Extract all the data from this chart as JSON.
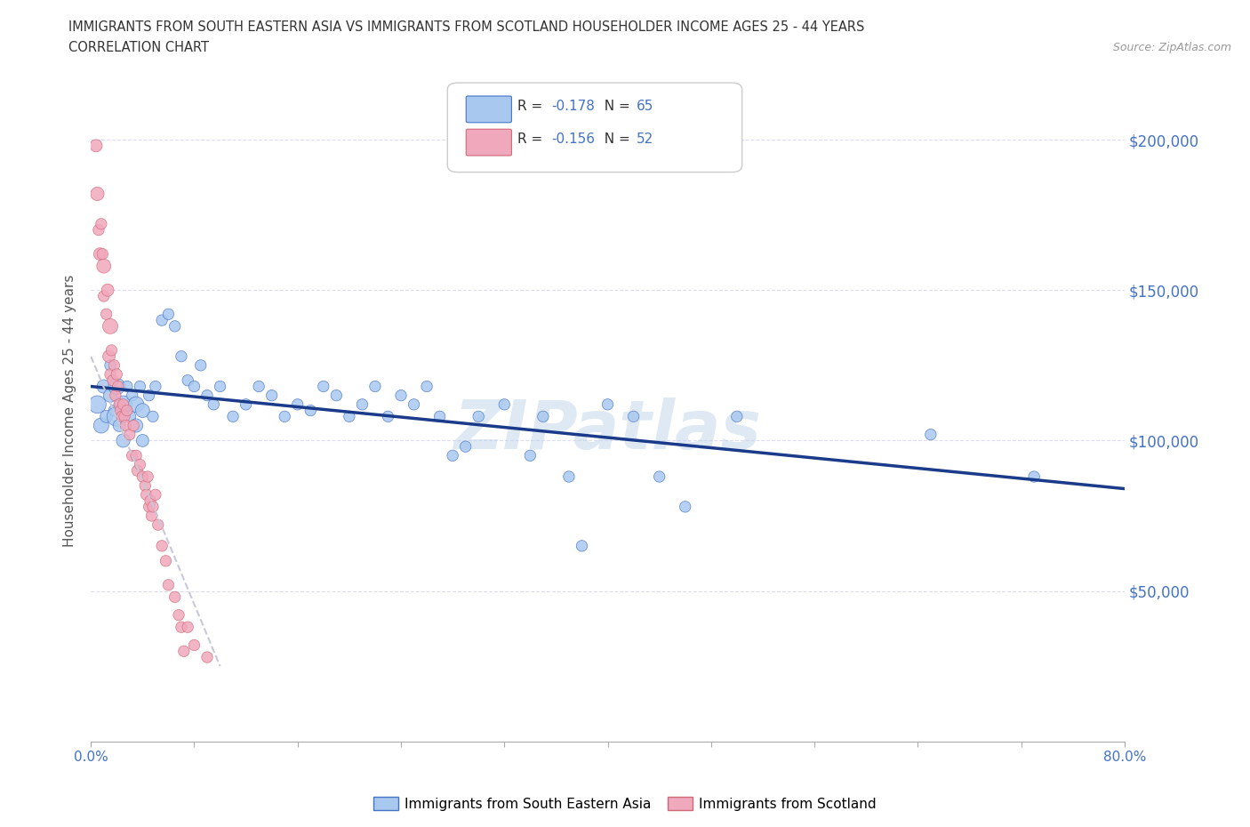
{
  "title_line1": "IMMIGRANTS FROM SOUTH EASTERN ASIA VS IMMIGRANTS FROM SCOTLAND HOUSEHOLDER INCOME AGES 25 - 44 YEARS",
  "title_line2": "CORRELATION CHART",
  "source_text": "Source: ZipAtlas.com",
  "ylabel": "Householder Income Ages 25 - 44 years",
  "legend1_label": "Immigrants from South Eastern Asia",
  "legend2_label": "Immigrants from Scotland",
  "r1": -0.178,
  "n1": 65,
  "r2": -0.156,
  "n2": 52,
  "color_blue": "#a8c8f0",
  "color_pink": "#f0a8bc",
  "color_blue_edge": "#4472c4",
  "color_pink_edge": "#d06878",
  "color_blue_text": "#4472c4",
  "trendline1_color": "#1a3a8a",
  "trendline2_color": "#c8c8d8",
  "watermark": "ZIPatlas",
  "xmin": 0.0,
  "xmax": 0.8,
  "ymin": 0,
  "ymax": 220000,
  "ytick_values": [
    50000,
    100000,
    150000,
    200000
  ],
  "ytick_labels": [
    "$50,000",
    "$100,000",
    "$150,000",
    "$200,000"
  ],
  "xtick_minor": [
    0.0,
    0.08,
    0.16,
    0.24,
    0.32,
    0.4,
    0.48,
    0.56,
    0.64,
    0.72,
    0.8
  ],
  "blue_x": [
    0.005,
    0.008,
    0.01,
    0.012,
    0.015,
    0.015,
    0.018,
    0.02,
    0.02,
    0.022,
    0.025,
    0.025,
    0.028,
    0.03,
    0.032,
    0.035,
    0.035,
    0.038,
    0.04,
    0.04,
    0.045,
    0.048,
    0.05,
    0.055,
    0.06,
    0.065,
    0.07,
    0.075,
    0.08,
    0.085,
    0.09,
    0.095,
    0.1,
    0.11,
    0.12,
    0.13,
    0.14,
    0.15,
    0.16,
    0.17,
    0.18,
    0.19,
    0.2,
    0.21,
    0.22,
    0.23,
    0.24,
    0.25,
    0.26,
    0.27,
    0.28,
    0.29,
    0.3,
    0.32,
    0.34,
    0.35,
    0.37,
    0.38,
    0.4,
    0.42,
    0.44,
    0.46,
    0.5,
    0.65,
    0.73
  ],
  "blue_y": [
    112000,
    105000,
    118000,
    108000,
    115000,
    125000,
    110000,
    108000,
    118000,
    105000,
    112000,
    100000,
    118000,
    108000,
    115000,
    112000,
    105000,
    118000,
    110000,
    100000,
    115000,
    108000,
    118000,
    140000,
    142000,
    138000,
    128000,
    120000,
    118000,
    125000,
    115000,
    112000,
    118000,
    108000,
    112000,
    118000,
    115000,
    108000,
    112000,
    110000,
    118000,
    115000,
    108000,
    112000,
    118000,
    108000,
    115000,
    112000,
    118000,
    108000,
    95000,
    98000,
    108000,
    112000,
    95000,
    108000,
    88000,
    65000,
    112000,
    108000,
    88000,
    78000,
    108000,
    102000,
    88000
  ],
  "blue_sizes": [
    200,
    150,
    120,
    100,
    120,
    80,
    80,
    250,
    180,
    100,
    200,
    120,
    80,
    100,
    80,
    160,
    120,
    80,
    130,
    100,
    80,
    80,
    80,
    80,
    80,
    80,
    80,
    80,
    80,
    80,
    80,
    80,
    80,
    80,
    80,
    80,
    80,
    80,
    80,
    80,
    80,
    80,
    80,
    80,
    80,
    80,
    80,
    80,
    80,
    80,
    80,
    80,
    80,
    80,
    80,
    80,
    80,
    80,
    80,
    80,
    80,
    80,
    80,
    80,
    80
  ],
  "pink_x": [
    0.004,
    0.005,
    0.006,
    0.007,
    0.008,
    0.009,
    0.01,
    0.01,
    0.012,
    0.013,
    0.014,
    0.015,
    0.015,
    0.016,
    0.017,
    0.018,
    0.019,
    0.02,
    0.021,
    0.022,
    0.023,
    0.024,
    0.025,
    0.026,
    0.027,
    0.028,
    0.03,
    0.032,
    0.033,
    0.035,
    0.036,
    0.038,
    0.04,
    0.042,
    0.043,
    0.044,
    0.045,
    0.046,
    0.047,
    0.048,
    0.05,
    0.052,
    0.055,
    0.058,
    0.06,
    0.065,
    0.068,
    0.07,
    0.072,
    0.075,
    0.08,
    0.09
  ],
  "pink_y": [
    198000,
    182000,
    170000,
    162000,
    172000,
    162000,
    158000,
    148000,
    142000,
    150000,
    128000,
    138000,
    122000,
    130000,
    120000,
    125000,
    115000,
    122000,
    118000,
    112000,
    110000,
    108000,
    112000,
    108000,
    105000,
    110000,
    102000,
    95000,
    105000,
    95000,
    90000,
    92000,
    88000,
    85000,
    82000,
    88000,
    78000,
    80000,
    75000,
    78000,
    82000,
    72000,
    65000,
    60000,
    52000,
    48000,
    42000,
    38000,
    30000,
    38000,
    32000,
    28000
  ],
  "pink_sizes": [
    100,
    120,
    80,
    100,
    80,
    80,
    130,
    80,
    80,
    100,
    100,
    150,
    80,
    80,
    80,
    80,
    80,
    80,
    80,
    80,
    80,
    80,
    80,
    80,
    80,
    80,
    80,
    80,
    80,
    80,
    80,
    80,
    80,
    80,
    80,
    80,
    80,
    80,
    80,
    80,
    80,
    80,
    80,
    80,
    80,
    80,
    80,
    80,
    80,
    80,
    80,
    80
  ],
  "blue_trend_x": [
    0.0,
    0.8
  ],
  "blue_trend_y": [
    118000,
    84000
  ],
  "pink_trend_x": [
    0.0,
    0.1
  ],
  "pink_trend_y": [
    128000,
    25000
  ]
}
